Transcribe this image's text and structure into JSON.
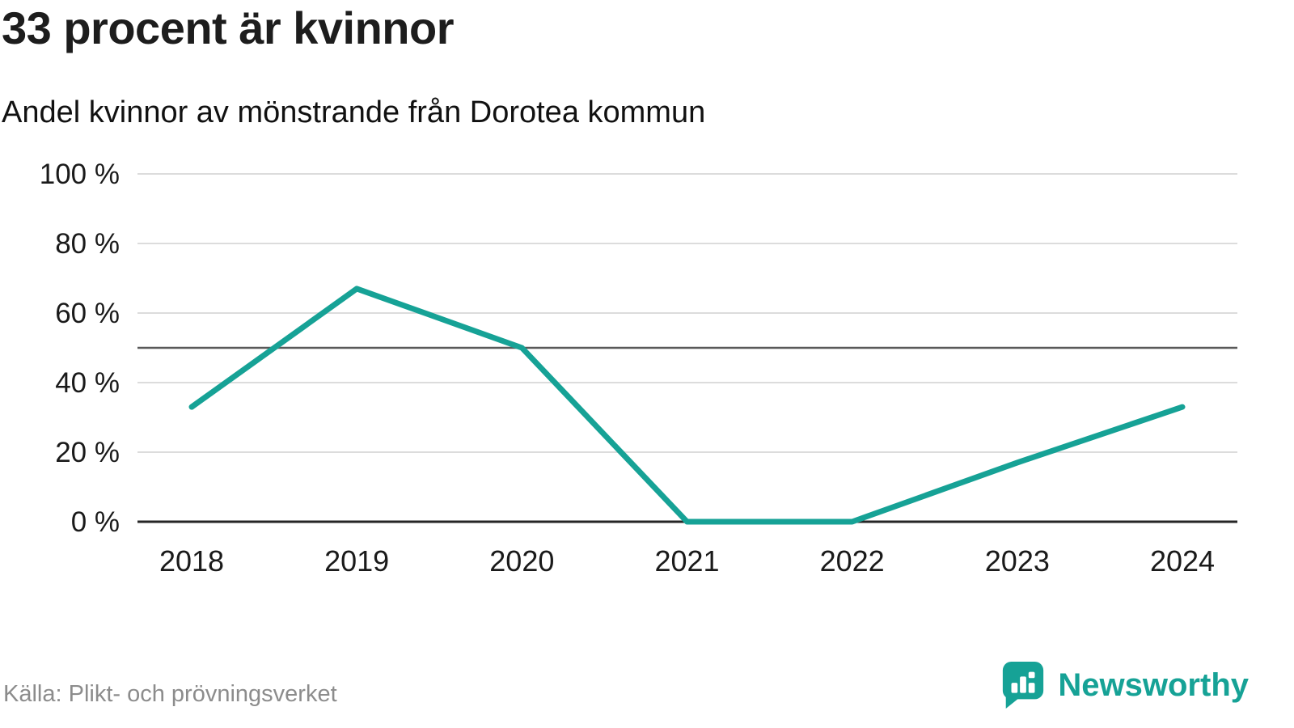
{
  "header": {
    "title": "33 procent är kvinnor",
    "subtitle": "Andel kvinnor av mönstrande från Dorotea kommun"
  },
  "chart_data": {
    "type": "line",
    "title": "33 procent är kvinnor",
    "subtitle": "Andel kvinnor av mönstrande från Dorotea kommun",
    "x_labels": [
      "2018",
      "2019",
      "2020",
      "2021",
      "2022",
      "2023",
      "2024"
    ],
    "series": [
      {
        "name": "Andel kvinnor av mönstrande (%)",
        "values": [
          33,
          67,
          50,
          0,
          0,
          17,
          33
        ]
      }
    ],
    "ylim": [
      0,
      100
    ],
    "yticks": [
      {
        "value": 0,
        "label": "0 %"
      },
      {
        "value": 20,
        "label": "20 %"
      },
      {
        "value": 40,
        "label": "40 %"
      },
      {
        "value": 60,
        "label": "60 %"
      },
      {
        "value": 80,
        "label": "80 %"
      },
      {
        "value": 100,
        "label": "100 %"
      }
    ],
    "reference_line": 50,
    "grid": true,
    "legend": "none"
  },
  "footer": {
    "source": "Källa: Plikt- och prövningsverket",
    "brand": "Newsworthy"
  },
  "colors": {
    "accent": "#16a296",
    "text": "#1d1d1d",
    "muted": "#8c8c8c",
    "grid": "#dcdcdc",
    "reference": "#595959",
    "axis": "#262626"
  }
}
